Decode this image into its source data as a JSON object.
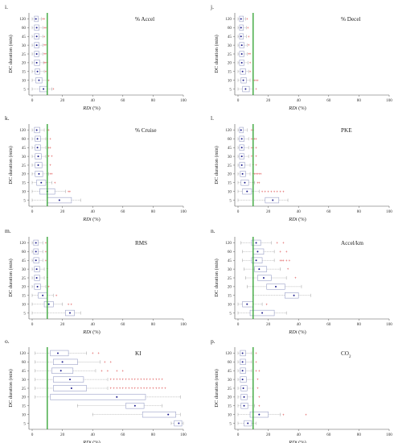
{
  "colors": {
    "threshold": "#2ca02c",
    "box": "#9aa0c8",
    "median": "#1a1a8c",
    "outlier": "#d62728",
    "axis": "#555555"
  },
  "chart_data": [
    {
      "label": "i.",
      "title": "% Accel",
      "type": "box",
      "xlabel_italic": "RDi",
      "xlabel_unit": " (%)",
      "ylabel": "DC duration (min)",
      "xlim": [
        0,
        100
      ],
      "xticks": [
        0,
        20,
        40,
        60,
        80,
        100
      ],
      "threshold": 10,
      "categories": [
        120,
        60,
        45,
        30,
        25,
        20,
        15,
        10,
        5
      ],
      "boxes": [
        {
          "min": 0,
          "q1": 1.5,
          "med": 2.5,
          "q3": 4,
          "max": 6,
          "out": [
            7,
            8
          ]
        },
        {
          "min": 0,
          "q1": 1.5,
          "med": 3,
          "q3": 4.5,
          "max": 7,
          "out": [
            8,
            9
          ]
        },
        {
          "min": 0,
          "q1": 1.5,
          "med": 3,
          "q3": 4.5,
          "max": 7,
          "out": [
            8
          ]
        },
        {
          "min": 0,
          "q1": 1.5,
          "med": 3,
          "q3": 4.5,
          "max": 7,
          "out": [
            8,
            9
          ]
        },
        {
          "min": 0,
          "q1": 1.5,
          "med": 3,
          "q3": 4.5,
          "max": 7,
          "out": [
            8,
            9
          ]
        },
        {
          "min": 0,
          "q1": 1.5,
          "med": 3,
          "q3": 5,
          "max": 7.5,
          "out": [
            8,
            9,
            10
          ]
        },
        {
          "min": 0,
          "q1": 2,
          "med": 3.5,
          "q3": 5,
          "max": 8,
          "out": [
            9
          ]
        },
        {
          "min": 0,
          "q1": 2.5,
          "med": 4.5,
          "q3": 6.5,
          "max": 10,
          "out": [
            11
          ]
        },
        {
          "min": 0,
          "q1": 5,
          "med": 7.5,
          "q3": 10,
          "max": 13,
          "out": [
            14
          ]
        }
      ]
    },
    {
      "label": "j.",
      "title": "% Decel",
      "type": "box",
      "xlabel_italic": "RDi",
      "xlabel_unit": " (%)",
      "ylabel": "DC duration (min)",
      "xlim": [
        0,
        100
      ],
      "xticks": [
        0,
        20,
        40,
        60,
        80,
        100
      ],
      "threshold": 10,
      "categories": [
        120,
        60,
        45,
        30,
        25,
        20,
        15,
        10,
        5
      ],
      "boxes": [
        {
          "min": 0,
          "q1": 1,
          "med": 2,
          "q3": 3.5,
          "max": 5,
          "out": [
            6
          ]
        },
        {
          "min": 0,
          "q1": 1,
          "med": 2,
          "q3": 3.5,
          "max": 5.5,
          "out": [
            6.5
          ]
        },
        {
          "min": 0,
          "q1": 1,
          "med": 2,
          "q3": 3.5,
          "max": 5.5,
          "out": [
            7
          ]
        },
        {
          "min": 0,
          "q1": 1,
          "med": 2.5,
          "q3": 4,
          "max": 6,
          "out": [
            7
          ]
        },
        {
          "min": 0,
          "q1": 1,
          "med": 2.5,
          "q3": 4,
          "max": 6,
          "out": [
            7,
            8
          ]
        },
        {
          "min": 0,
          "q1": 1,
          "med": 2.5,
          "q3": 4,
          "max": 6.5,
          "out": [
            8
          ]
        },
        {
          "min": 0,
          "q1": 1.5,
          "med": 3,
          "q3": 5,
          "max": 7,
          "out": [
            8
          ]
        },
        {
          "min": 0,
          "q1": 2,
          "med": 3.5,
          "q3": 5.5,
          "max": 8,
          "out": [
            10,
            11,
            12,
            13
          ]
        },
        {
          "min": 0,
          "q1": 3,
          "med": 5,
          "q3": 7.5,
          "max": 10,
          "out": [
            12
          ]
        }
      ]
    },
    {
      "label": "k.",
      "title": "% Cruise",
      "type": "box",
      "xlabel_italic": "RDi",
      "xlabel_unit": " (%)",
      "ylabel": "DC duration (min)",
      "xlim": [
        0,
        100
      ],
      "xticks": [
        0,
        20,
        40,
        60,
        80,
        100
      ],
      "threshold": 10,
      "categories": [
        120,
        60,
        45,
        30,
        25,
        20,
        15,
        10,
        5
      ],
      "boxes": [
        {
          "min": 0,
          "q1": 1.5,
          "med": 3,
          "q3": 5,
          "max": 8,
          "out": [
            10,
            11
          ]
        },
        {
          "min": 0,
          "q1": 2,
          "med": 3.5,
          "q3": 5.5,
          "max": 9,
          "out": [
            10,
            12
          ]
        },
        {
          "min": 0,
          "q1": 2,
          "med": 3.5,
          "q3": 5.5,
          "max": 9,
          "out": [
            11,
            12
          ]
        },
        {
          "min": 0,
          "q1": 2,
          "med": 4,
          "q3": 6,
          "max": 9,
          "out": [
            11,
            13
          ]
        },
        {
          "min": 0,
          "q1": 2,
          "med": 4,
          "q3": 6.5,
          "max": 10,
          "out": [
            12
          ]
        },
        {
          "min": 0,
          "q1": 2,
          "med": 4.5,
          "q3": 7,
          "max": 11,
          "out": [
            12,
            13
          ]
        },
        {
          "min": 0,
          "q1": 3,
          "med": 6,
          "q3": 9,
          "max": 13,
          "out": [
            15
          ]
        },
        {
          "min": 0,
          "q1": 5,
          "med": 10,
          "q3": 15,
          "max": 22,
          "out": [
            24,
            25
          ]
        },
        {
          "min": 0,
          "q1": 10,
          "med": 18,
          "q3": 26,
          "max": 32,
          "out": []
        }
      ]
    },
    {
      "label": "l.",
      "title": "PKE",
      "type": "box",
      "xlabel_italic": "RDi",
      "xlabel_unit": " (%)",
      "ylabel": "DC duration (min)",
      "xlim": [
        0,
        100
      ],
      "xticks": [
        0,
        20,
        40,
        60,
        80,
        100
      ],
      "threshold": 10,
      "categories": [
        120,
        60,
        45,
        30,
        25,
        20,
        15,
        10,
        5
      ],
      "boxes": [
        {
          "min": 0,
          "q1": 1,
          "med": 2,
          "q3": 3.5,
          "max": 6,
          "out": [
            9,
            10
          ]
        },
        {
          "min": 0,
          "q1": 1,
          "med": 2.5,
          "q3": 4,
          "max": 7,
          "out": [
            9,
            10,
            11,
            12
          ]
        },
        {
          "min": 0,
          "q1": 1,
          "med": 2.5,
          "q3": 4,
          "max": 7,
          "out": [
            9,
            10,
            12
          ]
        },
        {
          "min": 0,
          "q1": 1,
          "med": 2.5,
          "q3": 4,
          "max": 7,
          "out": [
            9,
            12
          ]
        },
        {
          "min": 0,
          "q1": 1,
          "med": 2.5,
          "q3": 4.5,
          "max": 8,
          "out": [
            10,
            12
          ]
        },
        {
          "min": 0,
          "q1": 1.5,
          "med": 3,
          "q3": 5,
          "max": 8,
          "out": [
            10,
            11,
            12,
            13,
            14,
            15
          ]
        },
        {
          "min": 0,
          "q1": 2,
          "med": 4.5,
          "q3": 7,
          "max": 11,
          "out": [
            13,
            14
          ]
        },
        {
          "min": 0,
          "q1": 3,
          "med": 6,
          "q3": 9,
          "max": 14,
          "out": [
            16,
            18,
            20,
            22,
            24,
            26,
            28,
            30
          ]
        },
        {
          "min": 0,
          "q1": 18,
          "med": 23,
          "q3": 27,
          "max": 33,
          "out": []
        }
      ]
    },
    {
      "label": "m.",
      "title": "RMS",
      "type": "box",
      "xlabel_italic": "RDi",
      "xlabel_unit": " (%)",
      "ylabel": "DC duration (min)",
      "xlim": [
        0,
        100
      ],
      "xticks": [
        0,
        20,
        40,
        60,
        80,
        100
      ],
      "threshold": 10,
      "categories": [
        120,
        60,
        45,
        30,
        25,
        20,
        15,
        10,
        5
      ],
      "boxes": [
        {
          "min": 0,
          "q1": 1,
          "med": 2.5,
          "q3": 4,
          "max": 7,
          "out": [
            9
          ]
        },
        {
          "min": 0,
          "q1": 1,
          "med": 2.5,
          "q3": 4,
          "max": 7,
          "out": [
            9
          ]
        },
        {
          "min": 0,
          "q1": 1,
          "med": 2.5,
          "q3": 4.5,
          "max": 7,
          "out": [
            9
          ]
        },
        {
          "min": 0,
          "q1": 1.5,
          "med": 3,
          "q3": 5,
          "max": 8,
          "out": [
            10
          ]
        },
        {
          "min": 0,
          "q1": 1.5,
          "med": 3,
          "q3": 5,
          "max": 8,
          "out": [
            10
          ]
        },
        {
          "min": 0,
          "q1": 1.5,
          "med": 3.5,
          "q3": 5.5,
          "max": 9,
          "out": [
            11
          ]
        },
        {
          "min": 0,
          "q1": 4,
          "med": 7,
          "q3": 10,
          "max": 14,
          "out": [
            16
          ]
        },
        {
          "min": 0,
          "q1": 8,
          "med": 11,
          "q3": 14,
          "max": 20,
          "out": [
            24,
            26
          ]
        },
        {
          "min": 0,
          "q1": 22,
          "med": 25,
          "q3": 28,
          "max": 32,
          "out": []
        }
      ]
    },
    {
      "label": "n.",
      "title": "Accel/km",
      "type": "box",
      "xlabel_italic": "RDi",
      "xlabel_unit": " (%)",
      "ylabel": "DC duration (min)",
      "xlim": [
        0,
        100
      ],
      "xticks": [
        0,
        20,
        40,
        60,
        80,
        100
      ],
      "threshold": 10,
      "categories": [
        120,
        60,
        45,
        30,
        25,
        20,
        15,
        10,
        5
      ],
      "boxes": [
        {
          "min": 2,
          "q1": 9,
          "med": 12,
          "q3": 15,
          "max": 22,
          "out": [
            26,
            30
          ]
        },
        {
          "min": 3,
          "q1": 10,
          "med": 13,
          "q3": 17,
          "max": 24,
          "out": [
            28,
            32
          ]
        },
        {
          "min": 3,
          "q1": 9,
          "med": 12,
          "q3": 16,
          "max": 24,
          "out": [
            28,
            29,
            30,
            32,
            34
          ]
        },
        {
          "min": 4,
          "q1": 11,
          "med": 14,
          "q3": 19,
          "max": 28,
          "out": [
            33
          ]
        },
        {
          "min": 5,
          "q1": 13,
          "med": 17,
          "q3": 22,
          "max": 32,
          "out": [
            38
          ]
        },
        {
          "min": 6,
          "q1": 19,
          "med": 25,
          "q3": 31,
          "max": 42,
          "out": []
        },
        {
          "min": 10,
          "q1": 31,
          "med": 37,
          "q3": 40,
          "max": 48,
          "out": []
        },
        {
          "min": 0,
          "q1": 3,
          "med": 6,
          "q3": 10,
          "max": 16,
          "out": [
            19
          ]
        },
        {
          "min": 0,
          "q1": 8,
          "med": 16,
          "q3": 24,
          "max": 32,
          "out": []
        }
      ]
    },
    {
      "label": "o.",
      "title": "KI",
      "type": "box",
      "xlabel_italic": "RDi",
      "xlabel_unit": " (%)",
      "ylabel": "DC duration (min)",
      "xlim": [
        0,
        100
      ],
      "xticks": [
        0,
        20,
        40,
        60,
        80,
        100
      ],
      "threshold": 10,
      "categories": [
        120,
        60,
        45,
        30,
        25,
        20,
        15,
        10,
        5
      ],
      "boxes": [
        {
          "min": 2,
          "q1": 12,
          "med": 17,
          "q3": 24,
          "max": 36,
          "out": [
            40,
            44
          ]
        },
        {
          "min": 2,
          "q1": 14,
          "med": 20,
          "q3": 30,
          "max": 45,
          "out": [
            48,
            52
          ]
        },
        {
          "min": 2,
          "q1": 13,
          "med": 19,
          "q3": 27,
          "max": 42,
          "out": [
            46,
            50,
            56,
            60
          ]
        },
        {
          "min": 2,
          "q1": 14,
          "med": 25,
          "q3": 34,
          "max": 50,
          "out": [
            52,
            54,
            56,
            58,
            60,
            62,
            64,
            66,
            68,
            70,
            72,
            74,
            76,
            78,
            80,
            82,
            84,
            86
          ]
        },
        {
          "min": 2,
          "q1": 14,
          "med": 26,
          "q3": 36,
          "max": 50,
          "out": [
            52,
            54,
            56,
            58,
            60,
            62,
            64,
            66,
            68,
            70,
            72,
            74,
            76,
            78,
            80,
            82,
            84,
            86,
            88
          ]
        },
        {
          "min": 2,
          "q1": 12,
          "med": 56,
          "q3": 75,
          "max": 98,
          "out": []
        },
        {
          "min": 30,
          "q1": 62,
          "med": 68,
          "q3": 74,
          "max": 86,
          "out": []
        },
        {
          "min": 40,
          "q1": 73,
          "med": 90,
          "q3": 95,
          "max": 98,
          "out": []
        },
        {
          "min": 92,
          "q1": 94,
          "med": 97,
          "q3": 99,
          "max": 100,
          "out": []
        }
      ]
    },
    {
      "label": "p.",
      "title": "CO2",
      "type": "box",
      "xlabel_italic": "RDi",
      "xlabel_unit": " (%)",
      "ylabel": "DC duration (min)",
      "xlim": [
        0,
        100
      ],
      "xticks": [
        0,
        20,
        40,
        60,
        80,
        100
      ],
      "threshold": 10,
      "categories": [
        120,
        60,
        45,
        30,
        25,
        20,
        15,
        10,
        5
      ],
      "boxes": [
        {
          "min": 0,
          "q1": 1.5,
          "med": 3,
          "q3": 5,
          "max": 9,
          "out": [
            12
          ]
        },
        {
          "min": 0,
          "q1": 1.5,
          "med": 3,
          "q3": 5,
          "max": 9,
          "out": [
            12
          ]
        },
        {
          "min": 0,
          "q1": 1.5,
          "med": 3,
          "q3": 5,
          "max": 9,
          "out": [
            12,
            14
          ]
        },
        {
          "min": 0,
          "q1": 1.5,
          "med": 3,
          "q3": 5.5,
          "max": 10,
          "out": [
            13
          ]
        },
        {
          "min": 0,
          "q1": 2,
          "med": 3.5,
          "q3": 6,
          "max": 10,
          "out": [
            13
          ]
        },
        {
          "min": 0,
          "q1": 2,
          "med": 4,
          "q3": 6,
          "max": 10,
          "out": [
            14
          ]
        },
        {
          "min": 0,
          "q1": 2,
          "med": 4,
          "q3": 6.5,
          "max": 11,
          "out": [
            14
          ]
        },
        {
          "min": 0,
          "q1": 8,
          "med": 14,
          "q3": 20,
          "max": 28,
          "out": [
            30,
            45
          ]
        },
        {
          "min": 0,
          "q1": 4,
          "med": 6.5,
          "q3": 9,
          "max": 12,
          "out": []
        }
      ]
    }
  ]
}
